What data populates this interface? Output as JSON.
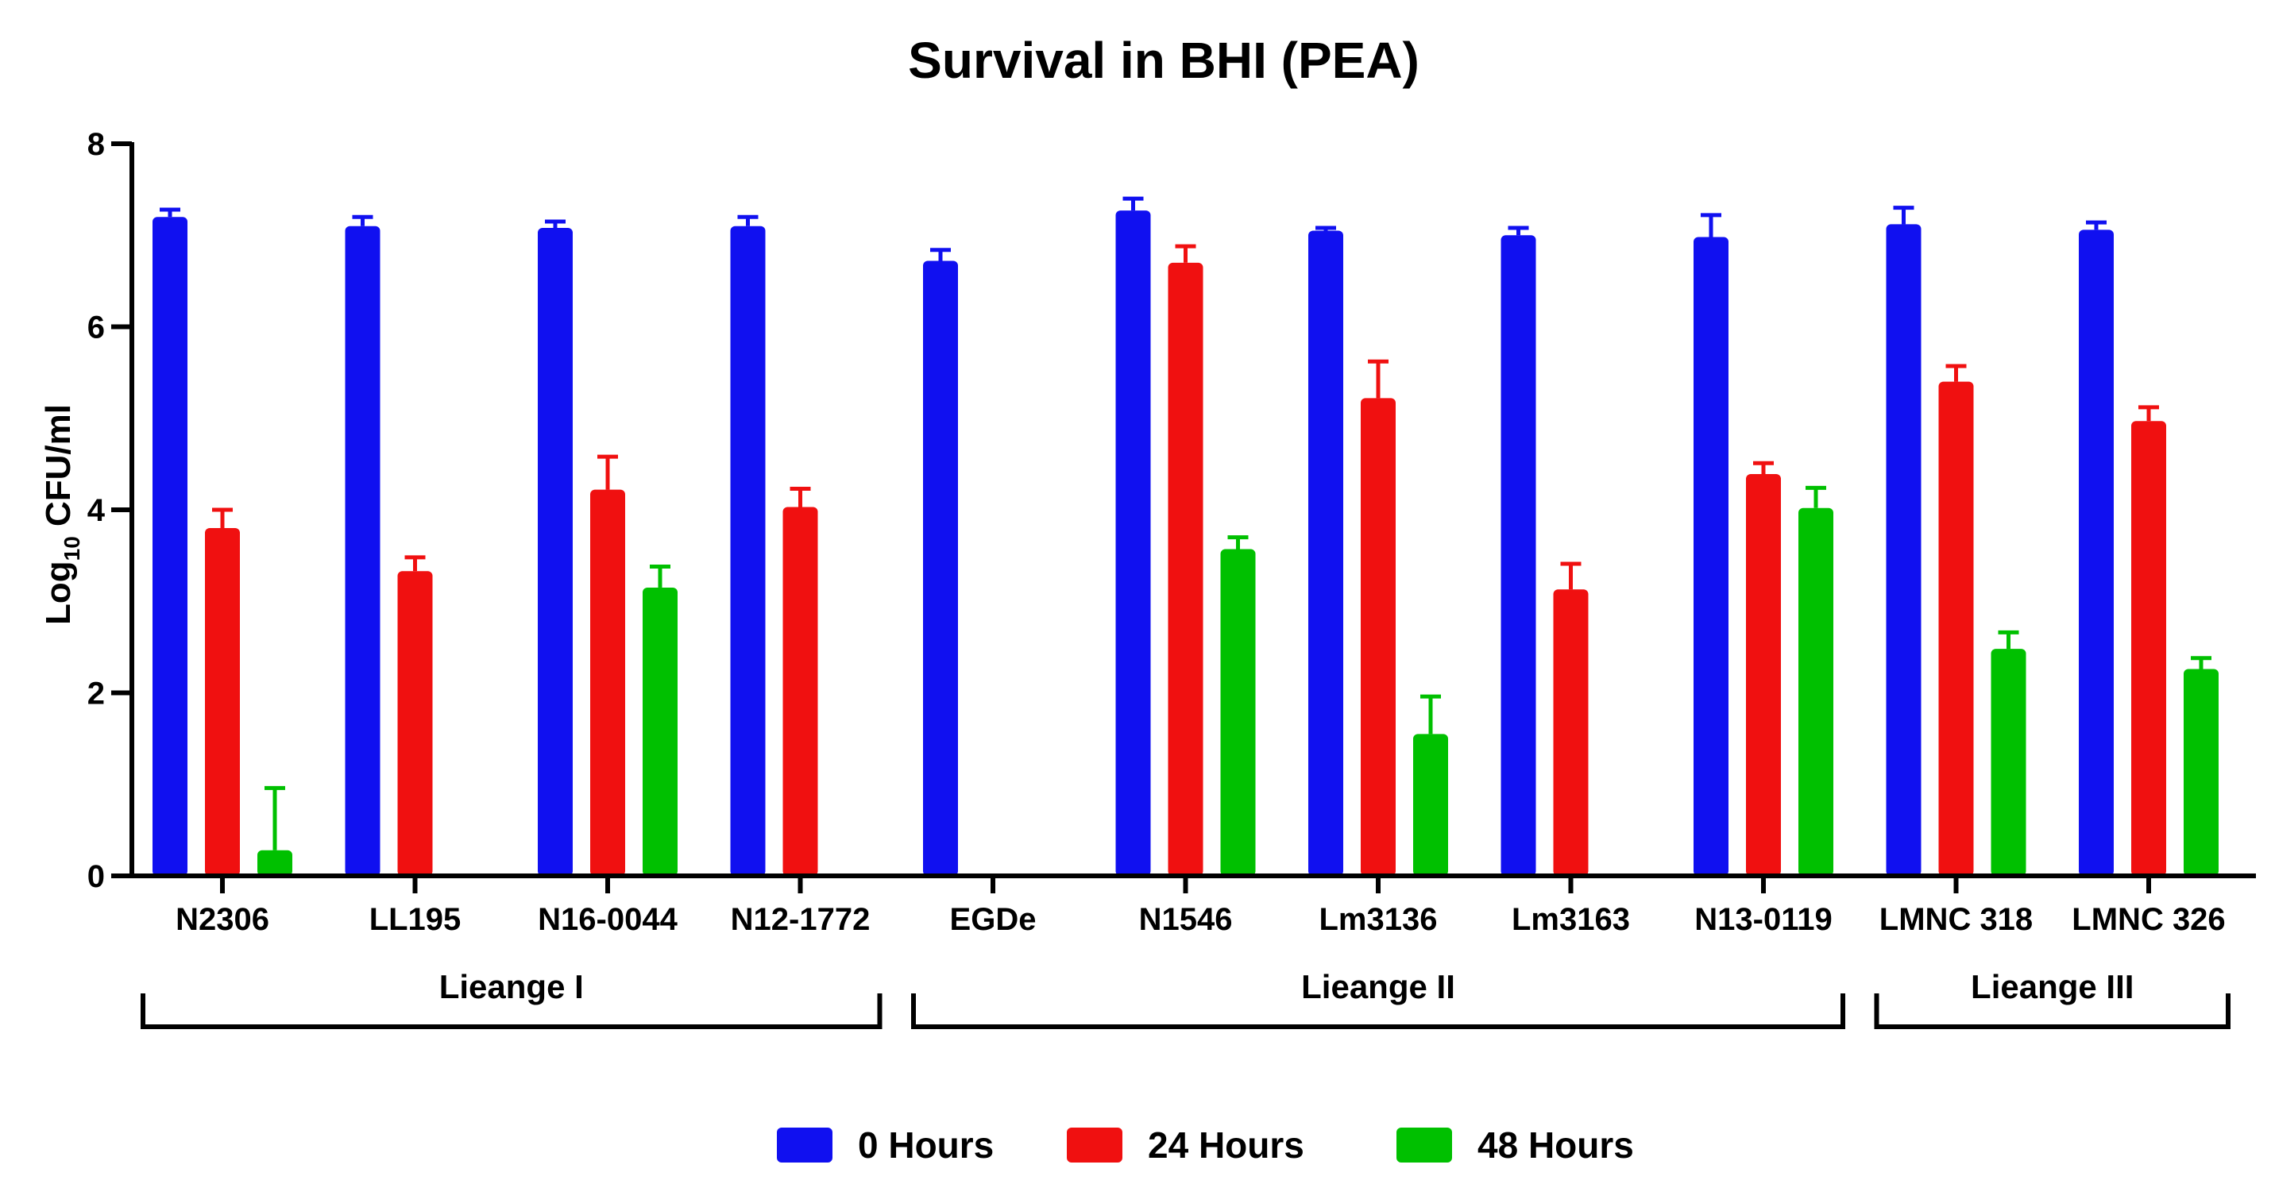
{
  "chart_data": {
    "type": "bar",
    "title": "Survival in BHI (PEA)",
    "xlabel": "",
    "ylabel": "Log10 CFU/ml",
    "ylabel_parts": {
      "base": "Log",
      "sub": "10",
      "rest": " CFU/ml"
    },
    "ylim": [
      0,
      8
    ],
    "yticks": [
      0,
      2,
      4,
      6,
      8
    ],
    "categories": [
      "N2306",
      "LL195",
      "N16-0044",
      "N12-1772",
      "EGDe",
      "N1546",
      "Lm3136",
      "Lm3163",
      "N13-0119",
      "LMNC 318",
      "LMNC 326"
    ],
    "series": [
      {
        "name": "0 Hours",
        "color": "#1010f0",
        "values": [
          7.2,
          7.1,
          7.08,
          7.1,
          6.72,
          7.27,
          7.05,
          7.0,
          6.98,
          7.12,
          7.06
        ],
        "errors": [
          0.08,
          0.1,
          0.07,
          0.1,
          0.12,
          0.13,
          0.03,
          0.08,
          0.24,
          0.18,
          0.08
        ]
      },
      {
        "name": "24 Hours",
        "color": "#f01010",
        "values": [
          3.8,
          3.33,
          4.22,
          4.03,
          null,
          6.7,
          5.22,
          3.13,
          4.39,
          5.4,
          4.97
        ],
        "errors": [
          0.2,
          0.15,
          0.36,
          0.2,
          null,
          0.18,
          0.4,
          0.28,
          0.12,
          0.17,
          0.15
        ]
      },
      {
        "name": "48 Hours",
        "color": "#00c000",
        "values": [
          0.28,
          null,
          3.15,
          null,
          null,
          3.57,
          1.55,
          null,
          4.02,
          2.48,
          2.26
        ],
        "errors": [
          0.68,
          null,
          0.23,
          null,
          null,
          0.13,
          0.41,
          null,
          0.22,
          0.18,
          0.12
        ]
      }
    ],
    "groups": [
      {
        "label": "Lieange I",
        "from": 0,
        "to": 3
      },
      {
        "label": "Lieange II",
        "from": 4,
        "to": 8
      },
      {
        "label": "Lieange III",
        "from": 9,
        "to": 10
      }
    ],
    "legend_position": "bottom-center",
    "grid": false
  }
}
